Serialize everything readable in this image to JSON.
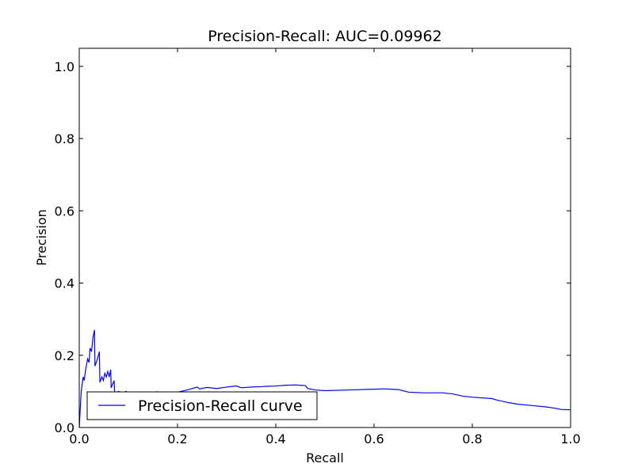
{
  "chart_data": {
    "type": "line",
    "title": "Precision-Recall: AUC=0.09962",
    "xlabel": "Recall",
    "ylabel": "Precision",
    "xlim": [
      0.0,
      1.0
    ],
    "ylim": [
      0.0,
      1.05
    ],
    "x_ticks": [
      "0.0",
      "0.2",
      "0.4",
      "0.6",
      "0.8",
      "1.0"
    ],
    "y_ticks": [
      "0.0",
      "0.2",
      "0.4",
      "0.6",
      "0.8",
      "1.0"
    ],
    "legend_position": "lower-left",
    "series": [
      {
        "name": "Precision-Recall curve",
        "color": "#0000ff",
        "points": [
          [
            0.0,
            0.0
          ],
          [
            0.004,
            0.1
          ],
          [
            0.008,
            0.14
          ],
          [
            0.01,
            0.13
          ],
          [
            0.013,
            0.16
          ],
          [
            0.017,
            0.19
          ],
          [
            0.02,
            0.18
          ],
          [
            0.022,
            0.22
          ],
          [
            0.025,
            0.21
          ],
          [
            0.028,
            0.25
          ],
          [
            0.031,
            0.27
          ],
          [
            0.032,
            0.17
          ],
          [
            0.037,
            0.19
          ],
          [
            0.041,
            0.21
          ],
          [
            0.042,
            0.125
          ],
          [
            0.046,
            0.14
          ],
          [
            0.049,
            0.13
          ],
          [
            0.052,
            0.15
          ],
          [
            0.055,
            0.14
          ],
          [
            0.058,
            0.155
          ],
          [
            0.061,
            0.14
          ],
          [
            0.064,
            0.16
          ],
          [
            0.065,
            0.11
          ],
          [
            0.068,
            0.12
          ],
          [
            0.071,
            0.13
          ],
          [
            0.072,
            0.095
          ],
          [
            0.08,
            0.1
          ],
          [
            0.088,
            0.095
          ],
          [
            0.095,
            0.1
          ],
          [
            0.1,
            0.095
          ],
          [
            0.105,
            0.098
          ],
          [
            0.12,
            0.094
          ],
          [
            0.14,
            0.097
          ],
          [
            0.16,
            0.099
          ],
          [
            0.165,
            0.094
          ],
          [
            0.18,
            0.095
          ],
          [
            0.2,
            0.098
          ],
          [
            0.22,
            0.104
          ],
          [
            0.24,
            0.112
          ],
          [
            0.245,
            0.107
          ],
          [
            0.26,
            0.111
          ],
          [
            0.28,
            0.108
          ],
          [
            0.3,
            0.112
          ],
          [
            0.32,
            0.115
          ],
          [
            0.33,
            0.11
          ],
          [
            0.35,
            0.112
          ],
          [
            0.37,
            0.113
          ],
          [
            0.38,
            0.114
          ],
          [
            0.4,
            0.115
          ],
          [
            0.42,
            0.117
          ],
          [
            0.44,
            0.118
          ],
          [
            0.46,
            0.116
          ],
          [
            0.465,
            0.108
          ],
          [
            0.48,
            0.104
          ],
          [
            0.5,
            0.102
          ],
          [
            0.55,
            0.104
          ],
          [
            0.6,
            0.106
          ],
          [
            0.62,
            0.107
          ],
          [
            0.65,
            0.105
          ],
          [
            0.67,
            0.098
          ],
          [
            0.7,
            0.096
          ],
          [
            0.74,
            0.096
          ],
          [
            0.76,
            0.093
          ],
          [
            0.78,
            0.087
          ],
          [
            0.8,
            0.084
          ],
          [
            0.84,
            0.08
          ],
          [
            0.85,
            0.076
          ],
          [
            0.87,
            0.07
          ],
          [
            0.89,
            0.065
          ],
          [
            0.92,
            0.061
          ],
          [
            0.95,
            0.057
          ],
          [
            0.97,
            0.053
          ],
          [
            0.98,
            0.05
          ],
          [
            1.0,
            0.049
          ]
        ]
      }
    ]
  }
}
